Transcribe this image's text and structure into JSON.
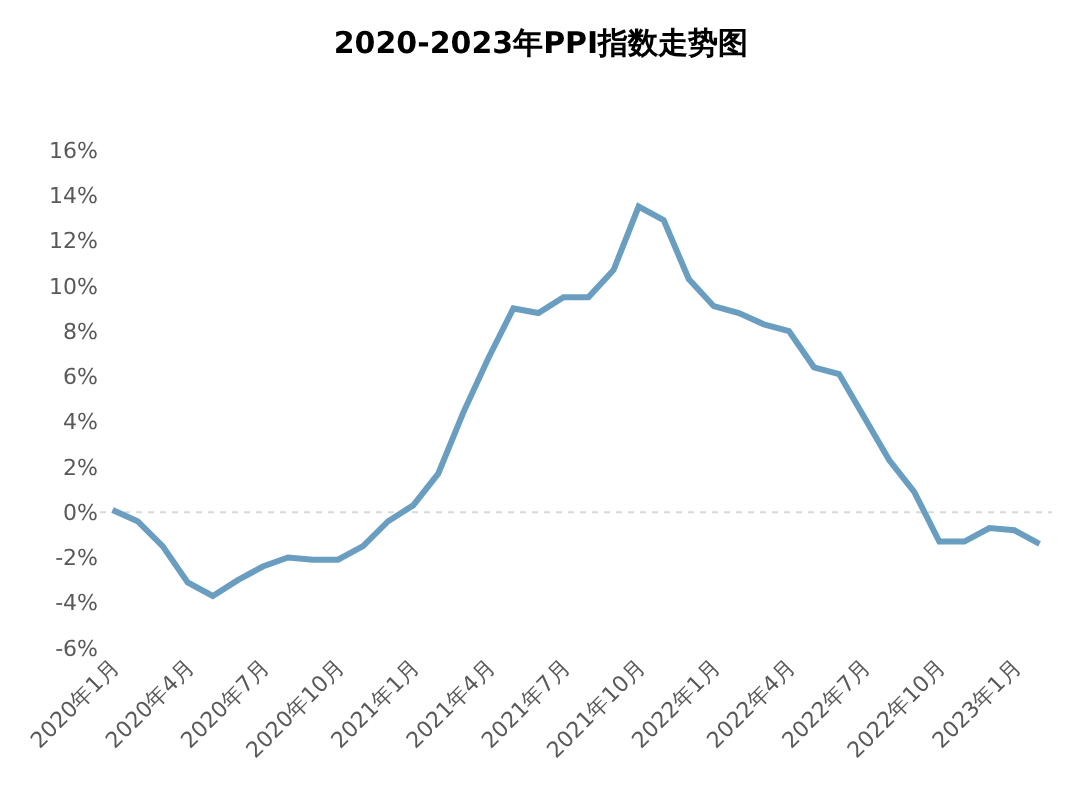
{
  "chart_data": {
    "type": "line",
    "title": "2020-2023年PPI指数走势图",
    "categories": [
      "2020年1月",
      null,
      null,
      "2020年4月",
      null,
      null,
      "2020年7月",
      null,
      null,
      "2020年10月",
      null,
      null,
      "2021年1月",
      null,
      null,
      "2021年4月",
      null,
      null,
      "2021年7月",
      null,
      null,
      "2021年10月",
      null,
      null,
      "2022年1月",
      null,
      null,
      "2022年4月",
      null,
      null,
      "2022年7月",
      null,
      null,
      "2022年10月",
      null,
      null,
      "2023年1月",
      null
    ],
    "series": [
      {
        "color": "#6a9ec0",
        "values": [
          0.1,
          -0.4,
          -1.5,
          -3.1,
          -3.7,
          -3.0,
          -2.4,
          -2.0,
          -2.1,
          -2.1,
          -1.5,
          -0.4,
          0.3,
          1.7,
          4.4,
          6.8,
          9.0,
          8.8,
          9.5,
          9.5,
          10.7,
          13.5,
          12.9,
          10.3,
          9.1,
          8.8,
          8.3,
          8.0,
          6.4,
          6.1,
          4.2,
          2.3,
          0.9,
          -1.3,
          -1.3,
          -0.7,
          -0.8,
          -1.4
        ]
      }
    ],
    "ylim": [
      -6,
      16
    ],
    "yticks": [
      {
        "value": -6,
        "label": "-6%"
      },
      {
        "value": -4,
        "label": "-4%"
      },
      {
        "value": -2,
        "label": "-2%"
      },
      {
        "value": 0,
        "label": "0%"
      },
      {
        "value": 2,
        "label": "2%"
      },
      {
        "value": 4,
        "label": "4%"
      },
      {
        "value": 6,
        "label": "6%"
      },
      {
        "value": 8,
        "label": "8%"
      },
      {
        "value": 10,
        "label": "10%"
      },
      {
        "value": 12,
        "label": "12%"
      },
      {
        "value": 14,
        "label": "14%"
      },
      {
        "value": 16,
        "label": "16%"
      }
    ],
    "ref_lines": [
      {
        "axis": "y",
        "value": 0,
        "color": "#d9d9d9",
        "line_style": "dotted"
      }
    ],
    "line_style": "solid",
    "marker": "none",
    "grid": false,
    "legend": false
  }
}
